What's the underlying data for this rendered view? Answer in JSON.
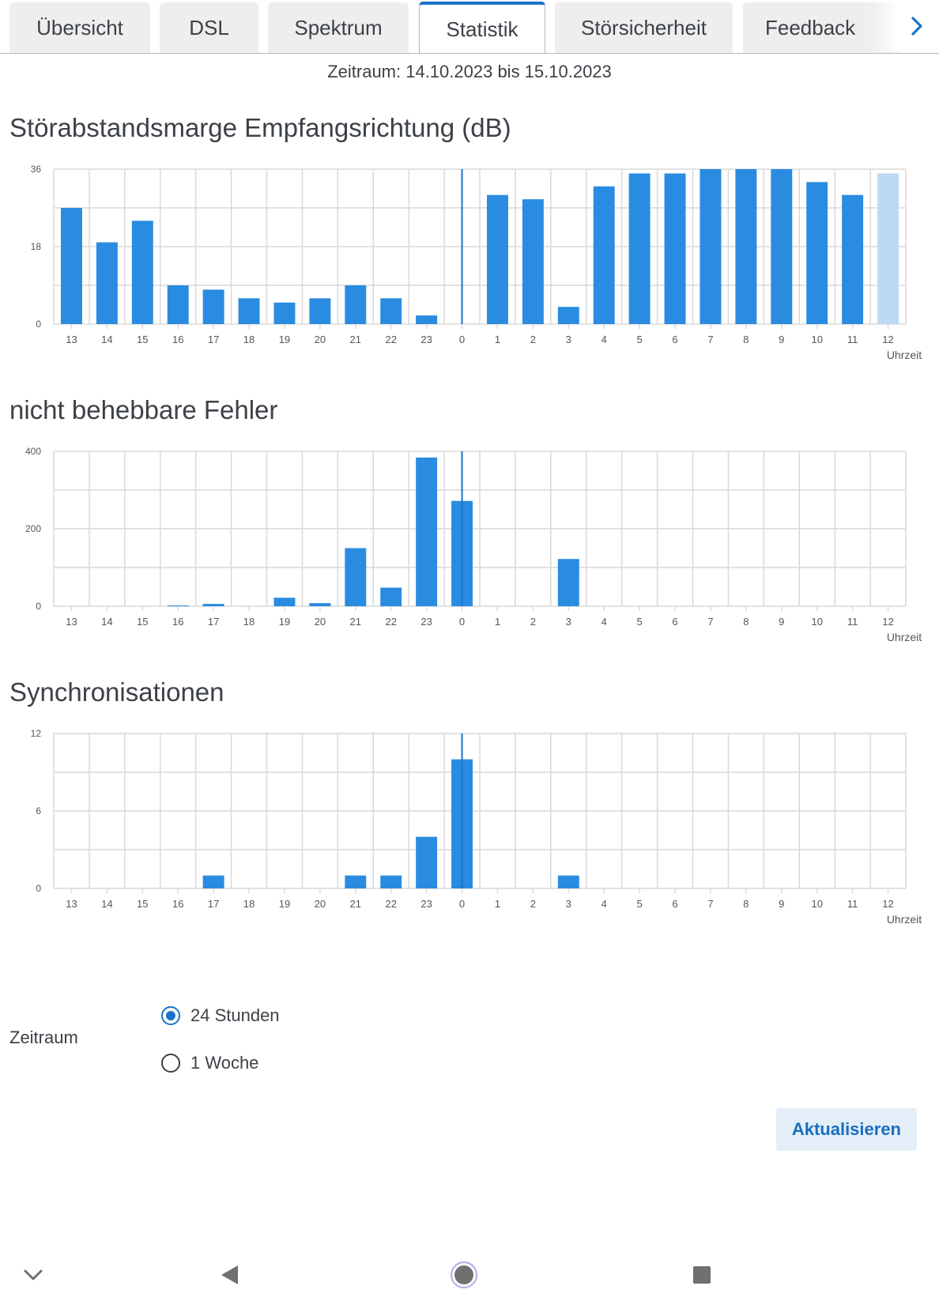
{
  "tabs": [
    {
      "label": "Übersicht",
      "active": false
    },
    {
      "label": "DSL",
      "active": false
    },
    {
      "label": "Spektrum",
      "active": false
    },
    {
      "label": "Statistik",
      "active": true
    },
    {
      "label": "Störsicherheit",
      "active": false
    },
    {
      "label": "Feedback",
      "active": false
    }
  ],
  "period_text": "Zeitraum: 14.10.2023 bis 15.10.2023",
  "charts": {
    "snr": {
      "title": "Störabstandsmarge Empfangsrichtung (dB)"
    },
    "errors": {
      "title": "nicht behebbare Fehler"
    },
    "sync": {
      "title": "Synchronisationen"
    }
  },
  "chart_data": [
    {
      "type": "bar",
      "title": "Störabstandsmarge Empfangsrichtung (dB)",
      "xlabel": "Uhrzeit",
      "ylabel": "",
      "categories": [
        "13",
        "14",
        "15",
        "16",
        "17",
        "18",
        "19",
        "20",
        "21",
        "22",
        "23",
        "0",
        "1",
        "2",
        "3",
        "4",
        "5",
        "6",
        "7",
        "8",
        "9",
        "10",
        "11",
        "12"
      ],
      "values": [
        27,
        19,
        24,
        9,
        8,
        6,
        5,
        6,
        9,
        6,
        2,
        0,
        30,
        29,
        4,
        32,
        35,
        35,
        36,
        36,
        36,
        33,
        30,
        35
      ],
      "highlight_last": true,
      "yticks": [
        0,
        18,
        36
      ],
      "ylim": [
        0,
        36
      ],
      "grid": true,
      "day_divider": "0"
    },
    {
      "type": "bar",
      "title": "nicht behebbare Fehler",
      "xlabel": "Uhrzeit",
      "ylabel": "",
      "categories": [
        "13",
        "14",
        "15",
        "16",
        "17",
        "18",
        "19",
        "20",
        "21",
        "22",
        "23",
        "0",
        "1",
        "2",
        "3",
        "4",
        "5",
        "6",
        "7",
        "8",
        "9",
        "10",
        "11",
        "12"
      ],
      "values": [
        0,
        0,
        0,
        2,
        6,
        0,
        22,
        8,
        150,
        48,
        384,
        272,
        0,
        0,
        122,
        0,
        0,
        0,
        0,
        0,
        0,
        0,
        0,
        0
      ],
      "yticks": [
        0,
        200,
        400
      ],
      "ylim": [
        0,
        400
      ],
      "grid": true,
      "day_divider": "0"
    },
    {
      "type": "bar",
      "title": "Synchronisationen",
      "xlabel": "Uhrzeit",
      "ylabel": "",
      "categories": [
        "13",
        "14",
        "15",
        "16",
        "17",
        "18",
        "19",
        "20",
        "21",
        "22",
        "23",
        "0",
        "1",
        "2",
        "3",
        "4",
        "5",
        "6",
        "7",
        "8",
        "9",
        "10",
        "11",
        "12"
      ],
      "values": [
        0,
        0,
        0,
        0,
        1,
        0,
        0,
        0,
        1,
        1,
        4,
        10,
        0,
        0,
        1,
        0,
        0,
        0,
        0,
        0,
        0,
        0,
        0,
        0
      ],
      "yticks": [
        0,
        6,
        12
      ],
      "ylim": [
        0,
        12
      ],
      "grid": true,
      "day_divider": "0"
    }
  ],
  "colors": {
    "bar": "#2a8ce0",
    "bar_light": "#bcdaf3",
    "grid": "#d9d9d9",
    "accent": "#1a73c9"
  },
  "form": {
    "label": "Zeitraum",
    "options": [
      {
        "label": "24 Stunden",
        "checked": true
      },
      {
        "label": "1 Woche",
        "checked": false
      }
    ]
  },
  "button_label": "Aktualisieren",
  "icons": {
    "tab_next": "chevron-right-icon",
    "nav_down": "chevron-down-icon",
    "nav_back": "back-triangle-icon",
    "nav_home": "home-circle-icon",
    "nav_recents": "recents-square-icon"
  }
}
